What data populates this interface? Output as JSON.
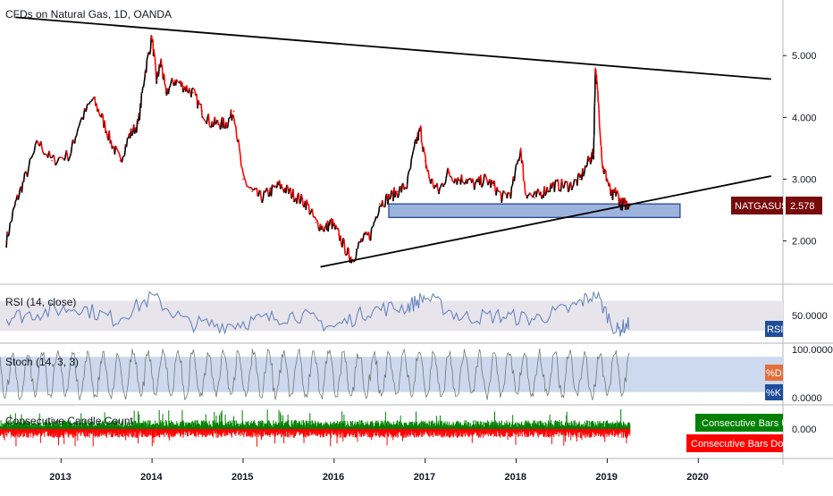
{
  "chart_data": {
    "type": "line",
    "title": "CFDs on Natural Gas, 1D, OANDA",
    "symbol": "NATGASUSD",
    "last_price": "2.578",
    "x_ticks": [
      "2013",
      "2014",
      "2015",
      "2016",
      "2017",
      "2018",
      "2019",
      "2020"
    ],
    "price_axis": {
      "ticks": [
        "2.000",
        "3.000",
        "4.000",
        "5.000"
      ],
      "ylim": [
        1.3,
        5.9
      ]
    },
    "price_series": {
      "name": "NATGASUSD",
      "x": [
        2012.4,
        2012.5,
        2012.6,
        2012.75,
        2012.9,
        2013.1,
        2013.2,
        2013.35,
        2013.45,
        2013.55,
        2013.65,
        2013.75,
        2013.85,
        2013.92,
        2014.0,
        2014.05,
        2014.1,
        2014.15,
        2014.25,
        2014.35,
        2014.45,
        2014.55,
        2014.65,
        2014.75,
        2014.82,
        2014.9,
        2015.0,
        2015.1,
        2015.2,
        2015.3,
        2015.4,
        2015.5,
        2015.6,
        2015.7,
        2015.8,
        2015.9,
        2015.97,
        2016.05,
        2016.15,
        2016.2,
        2016.3,
        2016.4,
        2016.5,
        2016.6,
        2016.7,
        2016.8,
        2016.9,
        2016.95,
        2017.0,
        2017.05,
        2017.15,
        2017.25,
        2017.35,
        2017.45,
        2017.55,
        2017.65,
        2017.75,
        2017.85,
        2017.95,
        2018.05,
        2018.1,
        2018.2,
        2018.3,
        2018.4,
        2018.5,
        2018.6,
        2018.7,
        2018.8,
        2018.85,
        2018.87,
        2018.9,
        2018.95,
        2019.0,
        2019.05,
        2019.1,
        2019.15,
        2019.2,
        2019.25
      ],
      "y": [
        2.0,
        2.6,
        3.0,
        3.6,
        3.3,
        3.4,
        3.9,
        4.3,
        4.0,
        3.6,
        3.3,
        3.7,
        3.9,
        4.7,
        5.3,
        4.6,
        4.9,
        4.4,
        4.6,
        4.5,
        4.4,
        4.1,
        3.9,
        3.9,
        3.9,
        4.1,
        3.0,
        2.8,
        2.7,
        2.8,
        2.9,
        2.8,
        2.7,
        2.6,
        2.3,
        2.2,
        2.3,
        2.1,
        1.8,
        1.7,
        2.0,
        2.1,
        2.6,
        2.7,
        2.8,
        2.9,
        3.6,
        3.8,
        3.3,
        3.0,
        2.8,
        3.1,
        3.0,
        3.0,
        2.9,
        3.0,
        2.9,
        2.7,
        2.8,
        3.5,
        2.8,
        2.7,
        2.8,
        2.9,
        2.9,
        2.9,
        3.0,
        3.3,
        3.4,
        4.8,
        4.3,
        3.2,
        3.0,
        2.7,
        2.8,
        2.6,
        2.6,
        2.6
      ]
    },
    "trendlines": [
      {
        "name": "descending resistance",
        "x": [
          2012.5,
          2020.8
        ],
        "y": [
          5.62,
          4.62
        ]
      },
      {
        "name": "ascending support",
        "x": [
          2015.85,
          2020.8
        ],
        "y": [
          1.58,
          3.05
        ]
      }
    ],
    "support_zone": {
      "x": [
        2016.6,
        2019.8
      ],
      "y": [
        2.38,
        2.6
      ]
    },
    "rsi": {
      "title": "RSI (14, close)",
      "badge": "RSI",
      "axis_tick": "50.0000",
      "ylim": [
        15,
        85
      ],
      "band": [
        30,
        70
      ],
      "x": [
        2012.4,
        2012.8,
        2013.2,
        2013.6,
        2014.0,
        2014.4,
        2014.8,
        2015.2,
        2015.6,
        2016.0,
        2016.4,
        2016.8,
        2017.0,
        2017.4,
        2017.8,
        2018.2,
        2018.6,
        2018.87,
        2019.1,
        2019.25
      ],
      "y": [
        48,
        55,
        62,
        45,
        75,
        40,
        38,
        45,
        52,
        35,
        58,
        62,
        75,
        48,
        50,
        46,
        60,
        80,
        30,
        40
      ]
    },
    "stoch": {
      "title": "Stoch (14, 3, 3)",
      "badges": [
        "%D",
        "%K"
      ],
      "axis_ticks": [
        "100.0000",
        "0.0000"
      ],
      "ylim": [
        0,
        100
      ],
      "band": [
        20,
        80
      ]
    },
    "consecutive": {
      "title": "Consecutive Candle Count",
      "axis_tick": "0.000",
      "legend": [
        "Consecutive Bars Up",
        "Consecutive Bars Down"
      ],
      "colors": {
        "up": "#008000",
        "down": "#ff0000"
      }
    },
    "colors": {
      "price_up": "#000000",
      "price_down": "#ff0000",
      "trendline": "#000000",
      "zone_fill": "#7b9bd1",
      "zone_stroke": "#1e3f86",
      "rsi_line": "#5b7fb8",
      "stoch_line": "#777777",
      "stoch_band": "#ccd9ee",
      "rsi_band": "#e8e4ec",
      "symbol_badge": "#780a0a",
      "rsi_badge": "#1f4e9a",
      "d_badge": "#e46e3c",
      "k_badge": "#1f4e9a"
    },
    "grid": false
  }
}
